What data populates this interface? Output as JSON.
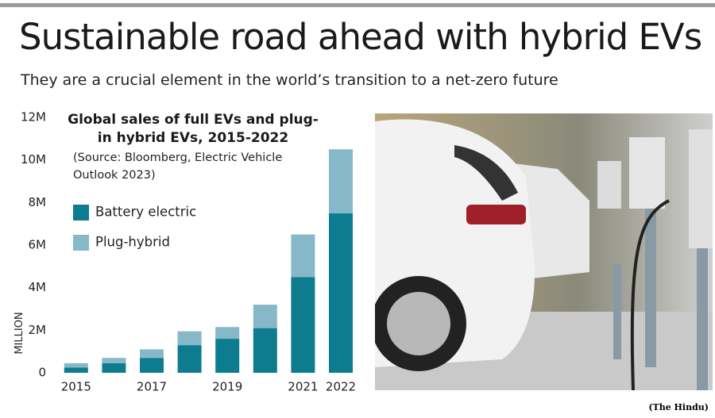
{
  "header": {
    "title": "Sustainable road ahead with hybrid EVs",
    "subtitle": "They are a crucial element in the world’s transition to a net-zero future"
  },
  "chart_data": {
    "type": "bar",
    "stacked": true,
    "title": "Global sales of full EVs and plug-in hybrid EVs, 2015-2022",
    "source": "(Source: Bloomberg, Electric Vehicle Outlook 2023)",
    "y_label": "MILLION",
    "categories": [
      "2015",
      null,
      "2017",
      null,
      "2019",
      null,
      "2021",
      "2022"
    ],
    "series": [
      {
        "name": "Battery electric",
        "color": "#0e7c8f",
        "values": [
          0.25,
          0.45,
          0.7,
          1.3,
          1.6,
          2.1,
          4.5,
          7.5
        ]
      },
      {
        "name": "Plug-hybrid",
        "color": "#86b8c9",
        "values": [
          0.2,
          0.25,
          0.4,
          0.65,
          0.55,
          1.1,
          2.0,
          3.0
        ]
      }
    ],
    "ylim": [
      0,
      12
    ],
    "yticks": [
      0,
      {
        "value": 2,
        "label": "2M"
      },
      {
        "value": 4,
        "label": "4M"
      },
      {
        "value": 6,
        "label": "6M"
      },
      {
        "value": 8,
        "label": "8M"
      },
      {
        "value": 10,
        "label": "10M"
      },
      {
        "value": 12,
        "label": "12M"
      }
    ],
    "grid": false
  },
  "credit": "(The Hindu)"
}
